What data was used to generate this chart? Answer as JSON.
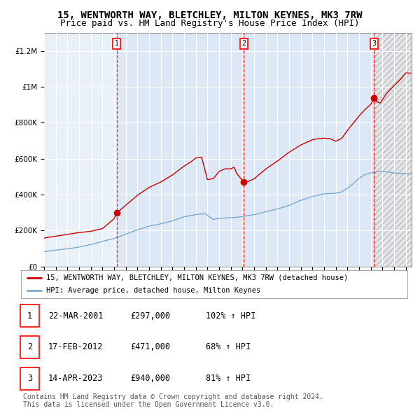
{
  "title1": "15, WENTWORTH WAY, BLETCHLEY, MILTON KEYNES, MK3 7RW",
  "title2": "Price paid vs. HM Land Registry's House Price Index (HPI)",
  "ylim": [
    0,
    1300000
  ],
  "yticks": [
    0,
    200000,
    400000,
    600000,
    800000,
    1000000,
    1200000
  ],
  "ytick_labels": [
    "£0",
    "£200K",
    "£400K",
    "£600K",
    "£800K",
    "£1M",
    "£1.2M"
  ],
  "xmin": 1995.0,
  "xmax": 2026.5,
  "sale_color": "#cc0000",
  "hpi_color": "#7aaad0",
  "bg_color": "#e8f0f8",
  "grid_color": "#ffffff",
  "sale_dates": [
    2001.22,
    2012.12,
    2023.29
  ],
  "sale_prices": [
    297000,
    471000,
    940000
  ],
  "sale_labels": [
    "1",
    "2",
    "3"
  ],
  "legend_sale": "15, WENTWORTH WAY, BLETCHLEY, MILTON KEYNES, MK3 7RW (detached house)",
  "legend_hpi": "HPI: Average price, detached house, Milton Keynes",
  "table_data": [
    [
      "1",
      "22-MAR-2001",
      "£297,000",
      "102% ↑ HPI"
    ],
    [
      "2",
      "17-FEB-2012",
      "£471,000",
      "68% ↑ HPI"
    ],
    [
      "3",
      "14-APR-2023",
      "£940,000",
      "81% ↑ HPI"
    ]
  ],
  "footnote": "Contains HM Land Registry data © Crown copyright and database right 2024.\nThis data is licensed under the Open Government Licence v3.0.",
  "title_fontsize": 10,
  "subtitle_fontsize": 9,
  "tick_fontsize": 7.5,
  "legend_fontsize": 8,
  "table_fontsize": 8.5,
  "footnote_fontsize": 7
}
